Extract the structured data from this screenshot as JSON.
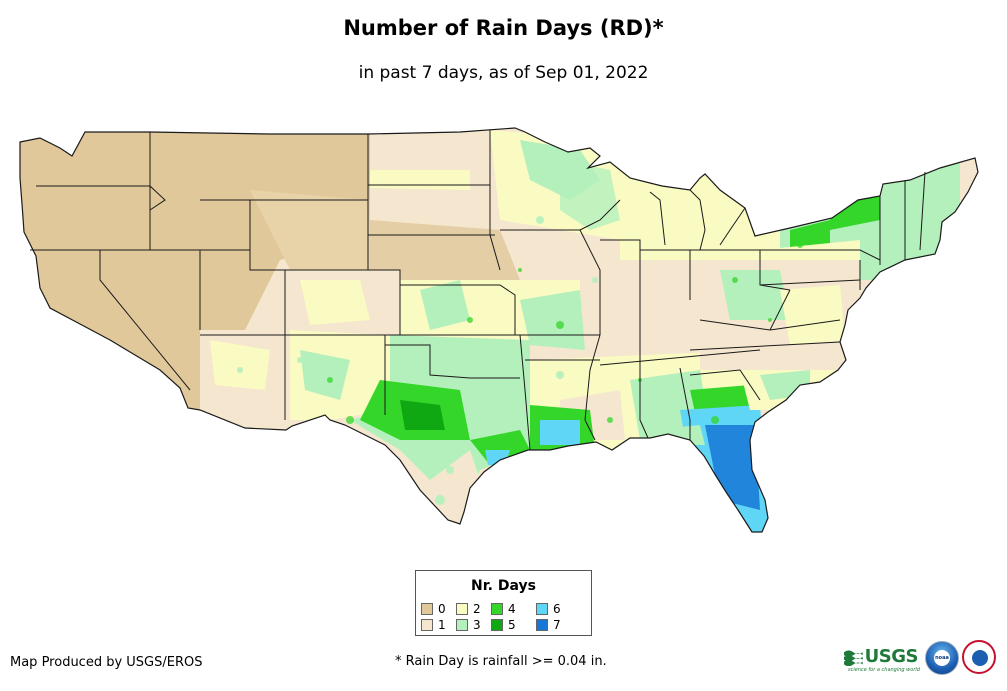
{
  "title": "Number of Rain Days (RD)*",
  "subtitle": "in past 7 days, as of Sep 01, 2022",
  "legend": {
    "title": "Nr. Days",
    "items": [
      {
        "label": "0",
        "color": "#e0c89a"
      },
      {
        "label": "1",
        "color": "#f5e6cf"
      },
      {
        "label": "2",
        "color": "#fafac3"
      },
      {
        "label": "3",
        "color": "#b4f0bc"
      },
      {
        "label": "4",
        "color": "#34d62a"
      },
      {
        "label": "5",
        "color": "#10a812"
      },
      {
        "label": "6",
        "color": "#5fd6f5"
      },
      {
        "label": "7",
        "color": "#1677d6"
      }
    ]
  },
  "credit": "Map Produced by USGS/EROS",
  "footnote": "* Rain Day is rainfall >= 0.04 in.",
  "logos": {
    "usgs": "USGS",
    "usgs_tagline": "science for a changing world",
    "noaa": "noaa",
    "nws_icon": "nws-seal-icon"
  },
  "map_icon": "conus-rain-days-map"
}
